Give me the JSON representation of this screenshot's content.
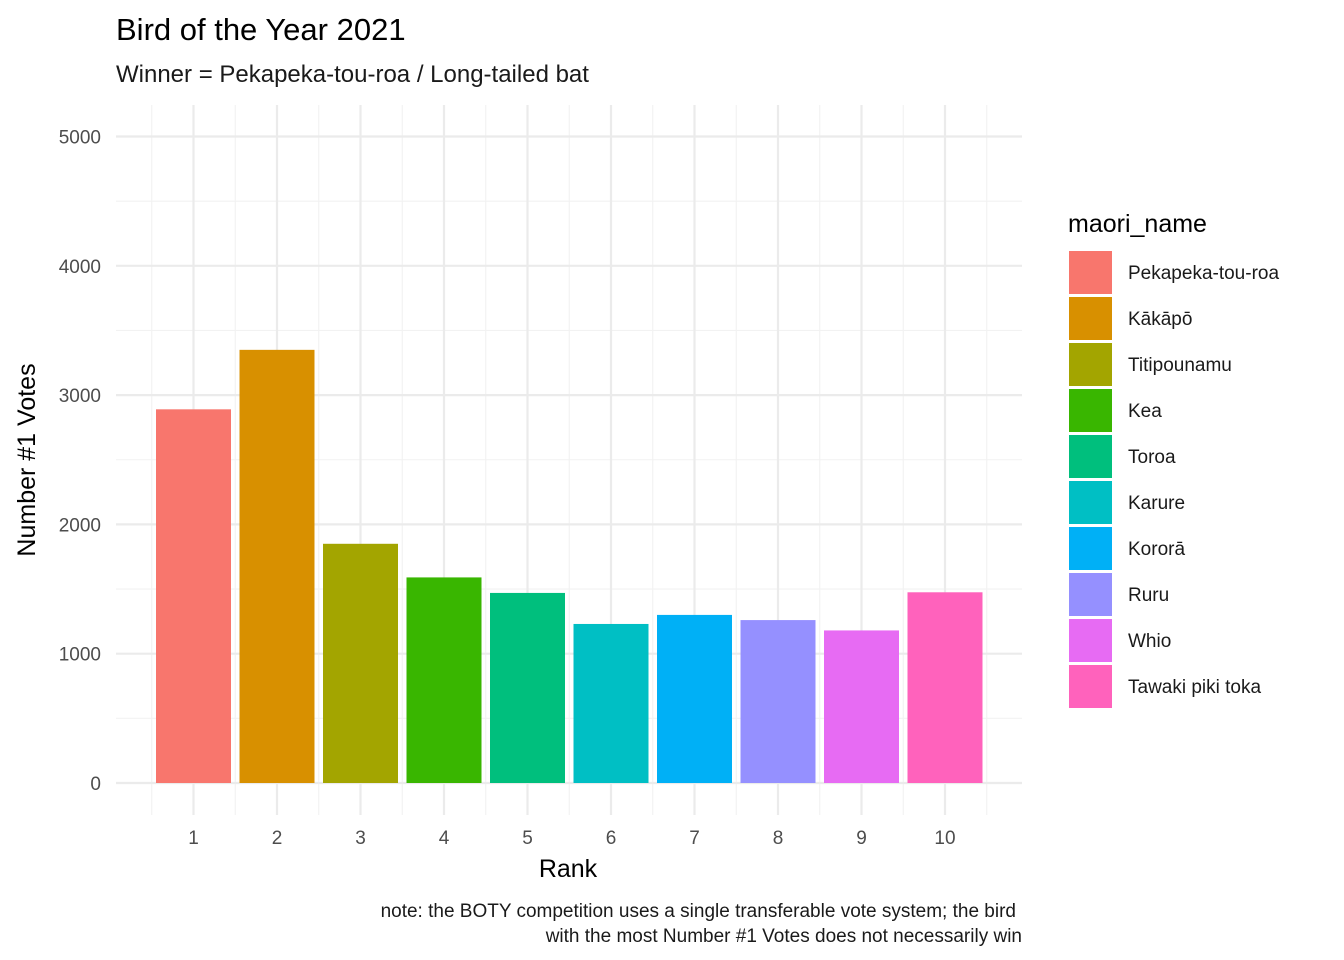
{
  "chart_data": {
    "type": "bar",
    "title": "Bird of the Year 2021",
    "subtitle": "Winner = Pekapeka-tou-roa / Long-tailed bat",
    "xlabel": "Rank",
    "ylabel": "Number #1 Votes",
    "categories": [
      "1",
      "2",
      "3",
      "4",
      "5",
      "6",
      "7",
      "8",
      "9",
      "10"
    ],
    "values": [
      2890,
      3350,
      1850,
      1590,
      1470,
      1230,
      1300,
      1260,
      1180,
      1475
    ],
    "ylim": [
      0,
      5000
    ],
    "yticks": [
      0,
      1000,
      2000,
      3000,
      4000,
      5000
    ],
    "ytick_labels": [
      "0",
      "1000",
      "2000",
      "3000",
      "4000",
      "5000"
    ],
    "grid": true,
    "legend": {
      "title": "maori_name",
      "placement": "right",
      "entries": [
        {
          "label": "Pekapeka-tou-roa",
          "color": "#F8766D"
        },
        {
          "label": "Kākāpō",
          "color": "#D89000"
        },
        {
          "label": "Titipounamu",
          "color": "#A3A500"
        },
        {
          "label": "Kea",
          "color": "#39B600"
        },
        {
          "label": "Toroa",
          "color": "#00BF7D"
        },
        {
          "label": "Karure",
          "color": "#00BFC4"
        },
        {
          "label": "Kororā",
          "color": "#00B0F6"
        },
        {
          "label": "Ruru",
          "color": "#9590FF"
        },
        {
          "label": "Whio",
          "color": "#E76BF3"
        },
        {
          "label": "Tawaki piki toka",
          "color": "#FF62BC"
        }
      ]
    },
    "caption": [
      "note: the BOTY competition uses a single transferable vote system; the bird",
      "with the most Number #1 Votes does not necessarily win"
    ]
  }
}
